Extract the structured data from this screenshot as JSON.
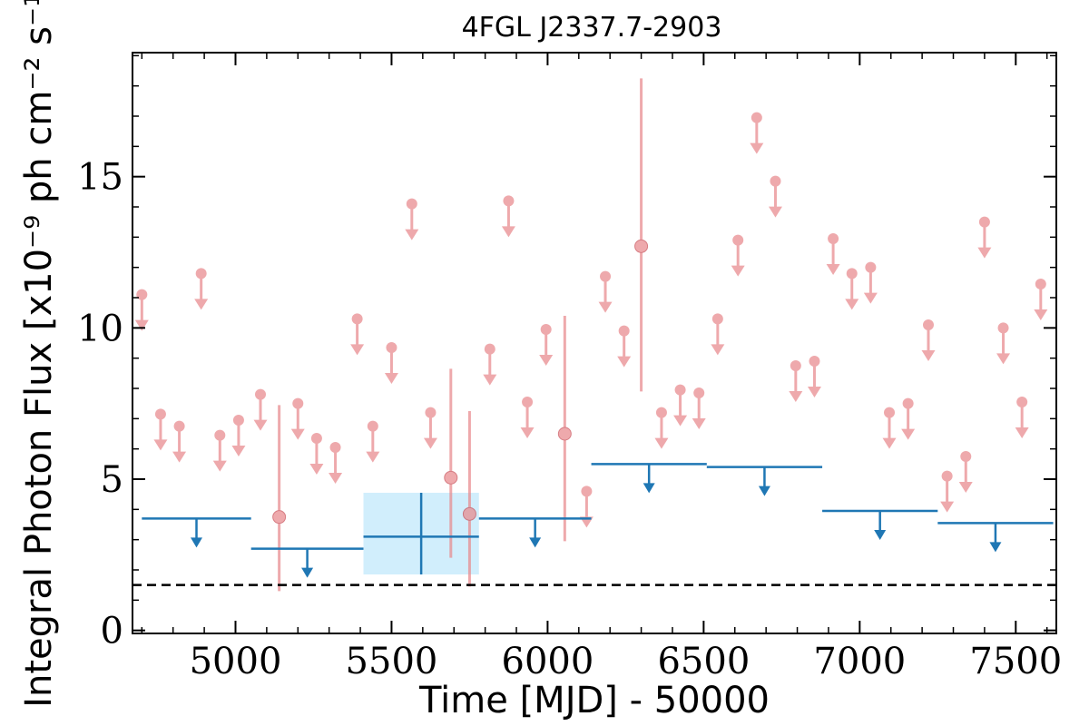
{
  "chart_data": {
    "type": "scatter",
    "title": "4FGL J2337.7-2903",
    "xlabel": "Time [MJD] - 50000",
    "ylabel": "Integral Photon Flux [x10⁻⁹ ph cm⁻² s⁻¹]",
    "xlim": [
      4670,
      7630
    ],
    "ylim": [
      -0.1,
      19.1
    ],
    "xticks": [
      5000,
      5500,
      6000,
      6500,
      7000,
      7500
    ],
    "yticks": [
      0,
      5,
      10,
      15
    ],
    "x_tick_labels": [
      "5000",
      "5500",
      "6000",
      "6500",
      "7000",
      "7500"
    ],
    "y_tick_labels": [
      "0",
      "5",
      "10",
      "15"
    ],
    "grid": false,
    "legend": "none",
    "colors": {
      "short_bins": "#e8898d",
      "long_bins": "#1f77b4",
      "long_bin_band": "#d1eefc",
      "threshold_line": "#000000"
    },
    "threshold_line": {
      "y": 1.5,
      "style": "dashed"
    },
    "series": [
      {
        "bins": "short",
        "upper_limits": [
          {
            "x": 4700,
            "y": 11.1
          },
          {
            "x": 4760,
            "y": 7.15
          },
          {
            "x": 4820,
            "y": 6.75
          },
          {
            "x": 4890,
            "y": 11.8
          },
          {
            "x": 4950,
            "y": 6.45
          },
          {
            "x": 5010,
            "y": 6.95
          },
          {
            "x": 5080,
            "y": 7.8
          },
          {
            "x": 5200,
            "y": 7.5
          },
          {
            "x": 5260,
            "y": 6.35
          },
          {
            "x": 5320,
            "y": 6.05
          },
          {
            "x": 5390,
            "y": 10.3
          },
          {
            "x": 5440,
            "y": 6.75
          },
          {
            "x": 5500,
            "y": 9.35
          },
          {
            "x": 5565,
            "y": 14.1
          },
          {
            "x": 5625,
            "y": 7.2
          },
          {
            "x": 5815,
            "y": 9.3
          },
          {
            "x": 5875,
            "y": 14.2
          },
          {
            "x": 5935,
            "y": 7.55
          },
          {
            "x": 5995,
            "y": 9.95
          },
          {
            "x": 6125,
            "y": 4.6
          },
          {
            "x": 6185,
            "y": 11.7
          },
          {
            "x": 6245,
            "y": 9.9
          },
          {
            "x": 6365,
            "y": 7.2
          },
          {
            "x": 6425,
            "y": 7.95
          },
          {
            "x": 6485,
            "y": 7.85
          },
          {
            "x": 6545,
            "y": 10.3
          },
          {
            "x": 6610,
            "y": 12.9
          },
          {
            "x": 6670,
            "y": 16.95
          },
          {
            "x": 6730,
            "y": 14.85
          },
          {
            "x": 6795,
            "y": 8.75
          },
          {
            "x": 6855,
            "y": 8.9
          },
          {
            "x": 6915,
            "y": 12.95
          },
          {
            "x": 6975,
            "y": 11.8
          },
          {
            "x": 7035,
            "y": 12.0
          },
          {
            "x": 7095,
            "y": 7.2
          },
          {
            "x": 7155,
            "y": 7.5
          },
          {
            "x": 7220,
            "y": 10.1
          },
          {
            "x": 7280,
            "y": 5.1
          },
          {
            "x": 7340,
            "y": 5.75
          },
          {
            "x": 7400,
            "y": 13.5
          },
          {
            "x": 7460,
            "y": 10.0
          },
          {
            "x": 7520,
            "y": 7.55
          },
          {
            "x": 7580,
            "y": 11.45
          }
        ],
        "detections": [
          {
            "x": 5140,
            "y": 3.75,
            "y_low": 1.3,
            "y_high": 7.45
          },
          {
            "x": 5690,
            "y": 5.05,
            "y_low": 2.4,
            "y_high": 8.65
          },
          {
            "x": 5750,
            "y": 3.85,
            "y_low": 1.45,
            "y_high": 7.25
          },
          {
            "x": 6055,
            "y": 6.5,
            "y_low": 2.95,
            "y_high": 10.4
          },
          {
            "x": 6300,
            "y": 12.7,
            "y_low": 7.9,
            "y_high": 18.25
          }
        ]
      },
      {
        "bins": "long",
        "upper_limits": [
          {
            "x_start": 4700,
            "x_end": 5050,
            "y": 3.7
          },
          {
            "x_start": 5050,
            "x_end": 5410,
            "y": 2.7
          },
          {
            "x_start": 5780,
            "x_end": 6140,
            "y": 3.7
          },
          {
            "x_start": 6140,
            "x_end": 6510,
            "y": 5.5
          },
          {
            "x_start": 6510,
            "x_end": 6880,
            "y": 5.4
          },
          {
            "x_start": 6880,
            "x_end": 7250,
            "y": 3.95
          },
          {
            "x_start": 7250,
            "x_end": 7620,
            "y": 3.55
          }
        ],
        "detections": [
          {
            "x_start": 5410,
            "x_end": 5780,
            "x": 5595,
            "y": 3.1,
            "y_low": 1.85,
            "y_high": 4.55
          }
        ]
      }
    ]
  }
}
